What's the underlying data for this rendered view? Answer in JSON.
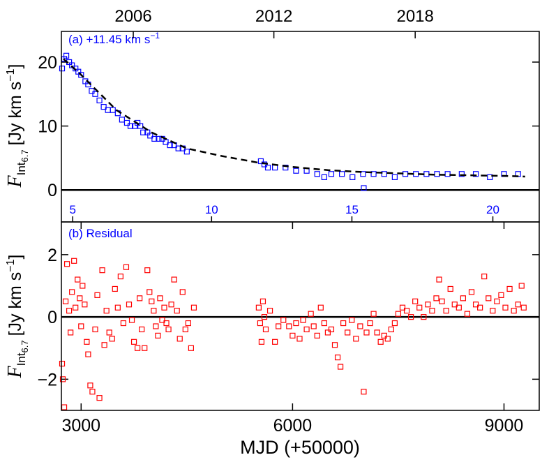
{
  "chart_data": [
    {
      "type": "scatter",
      "title": {
        "text": "(a) +11.45 km s",
        "sup": "−1"
      },
      "ylabel": {
        "symbol": "F",
        "sub": "Int",
        "subsub": "6.7",
        "unit": "[Jy km s",
        "sup": "−1",
        "end": "]"
      },
      "xlim": [
        2720,
        9500
      ],
      "ylim": [
        -5,
        24.8
      ],
      "yticks": [
        0,
        10,
        20
      ],
      "top_xticks": [
        {
          "value": 3740,
          "label": "2006"
        },
        {
          "value": 5735,
          "label": "2012"
        },
        {
          "value": 7740,
          "label": "2018"
        }
      ],
      "inner_xticks": [
        {
          "value": 2881,
          "label": "5"
        },
        {
          "value": 4851,
          "label": "10"
        },
        {
          "value": 6842,
          "label": "15"
        },
        {
          "value": 8842,
          "label": "20"
        }
      ],
      "color": "#0000ff",
      "reference_line": 0,
      "x": [
        2730,
        2760,
        2790,
        2830,
        2870,
        2920,
        2960,
        3000,
        3060,
        3100,
        3150,
        3200,
        3260,
        3320,
        3380,
        3450,
        3520,
        3580,
        3650,
        3700,
        3760,
        3800,
        3840,
        3880,
        3940,
        3980,
        4040,
        4100,
        4150,
        4200,
        4260,
        4320,
        4380,
        4440,
        4500,
        5550,
        5600,
        5650,
        5750,
        5900,
        6050,
        6200,
        6350,
        6450,
        6550,
        6700,
        6850,
        7000,
        7150,
        7300,
        7450,
        7600,
        7750,
        7900,
        8050,
        8200,
        8400,
        8600,
        8800,
        9000,
        9200,
        7010
      ],
      "values": [
        19,
        20.5,
        21,
        20,
        19.5,
        19,
        18.5,
        18,
        17,
        16.5,
        15.5,
        15,
        14,
        13,
        12.5,
        12.5,
        12,
        11,
        10.5,
        10,
        10,
        10.5,
        10,
        9,
        9,
        8.5,
        8,
        8,
        8,
        7.5,
        7,
        7,
        6.5,
        6.5,
        6,
        4.5,
        4,
        3.5,
        3.5,
        3.5,
        3,
        3,
        2.5,
        2,
        2.5,
        2.5,
        2,
        2.5,
        2.5,
        2.5,
        2,
        2.5,
        2.5,
        2.5,
        2.5,
        2.5,
        2.5,
        2.5,
        2,
        2.5,
        2.5,
        0.3
      ],
      "fit": {
        "color": "#000000",
        "style": "dashed",
        "x": [
          2750,
          3000,
          3500,
          4000,
          4500,
          5000,
          5500,
          6000,
          6500,
          7000,
          7500,
          8000,
          8500,
          9000,
          9300
        ],
        "values": [
          20.5,
          18,
          12.5,
          9,
          6.5,
          5.3,
          4.3,
          3.6,
          3.1,
          2.8,
          2.6,
          2.4,
          2.3,
          2.2,
          2.1
        ]
      }
    },
    {
      "type": "scatter",
      "title": {
        "text": "(b) Residual"
      },
      "ylabel": {
        "symbol": "F",
        "sub": "Int",
        "subsub": "6.7",
        "unit": "[Jy km s",
        "sup": "−1",
        "end": "]"
      },
      "xlabel": "MJD (+50000)",
      "xlim": [
        2720,
        9500
      ],
      "ylim": [
        -3,
        3.05
      ],
      "yticks": [
        {
          "value": -2,
          "label": "−2"
        },
        0,
        2
      ],
      "xticks": [
        3000,
        6000,
        9000
      ],
      "color": "#ff0000",
      "reference_line": 0,
      "x": [
        2730,
        2740,
        2760,
        2780,
        2800,
        2830,
        2850,
        2870,
        2900,
        2920,
        2950,
        2980,
        3000,
        3020,
        3050,
        3080,
        3100,
        3130,
        3160,
        3200,
        3230,
        3260,
        3300,
        3330,
        3360,
        3400,
        3440,
        3480,
        3520,
        3560,
        3600,
        3640,
        3680,
        3720,
        3750,
        3800,
        3830,
        3860,
        3900,
        3940,
        3970,
        4000,
        4030,
        4060,
        4090,
        4120,
        4150,
        4180,
        4210,
        4240,
        4280,
        4320,
        4360,
        4400,
        4440,
        4480,
        4520,
        4560,
        4600,
        5520,
        5540,
        5560,
        5580,
        5600,
        5620,
        5680,
        5750,
        5800,
        5870,
        5950,
        6000,
        6050,
        6100,
        6150,
        6200,
        6260,
        6300,
        6350,
        6400,
        6450,
        6500,
        6550,
        6600,
        6640,
        6680,
        6720,
        6780,
        6840,
        6900,
        6960,
        7010,
        7050,
        7100,
        7150,
        7200,
        7250,
        7300,
        7350,
        7400,
        7450,
        7500,
        7560,
        7620,
        7680,
        7740,
        7800,
        7860,
        7920,
        7980,
        8040,
        8080,
        8120,
        8180,
        8240,
        8300,
        8360,
        8420,
        8480,
        8540,
        8600,
        8660,
        8720,
        8780,
        8840,
        8900,
        8960,
        9020,
        9080,
        9140,
        9200,
        9250,
        9280
      ],
      "values": [
        -1.5,
        -2.0,
        -2.9,
        0.5,
        1.7,
        0.2,
        -0.5,
        0.8,
        1.8,
        0.3,
        1.2,
        0.6,
        -0.3,
        1.0,
        0.4,
        -0.8,
        -1.2,
        -2.2,
        -2.4,
        -0.4,
        0.7,
        -2.6,
        1.5,
        -0.9,
        0.2,
        -0.5,
        -0.7,
        0.9,
        0.3,
        1.3,
        -0.2,
        1.6,
        0.4,
        -0.1,
        -0.8,
        -1.0,
        0.6,
        -0.4,
        -1.0,
        1.5,
        0.8,
        0.5,
        0.2,
        -0.3,
        -0.6,
        0.6,
        -0.1,
        0.3,
        -0.2,
        -0.4,
        0.4,
        1.2,
        0.2,
        -0.7,
        0.8,
        -0.4,
        -0.2,
        -1.0,
        0.3,
        0.3,
        -0.2,
        -0.8,
        0.5,
        0.0,
        -0.4,
        0.2,
        -0.8,
        -0.3,
        -0.1,
        -0.3,
        -0.6,
        -0.2,
        -0.7,
        -0.1,
        -0.4,
        0.1,
        -0.3,
        -0.6,
        0.3,
        -0.2,
        -0.5,
        -0.4,
        -0.9,
        -1.3,
        -1.6,
        -0.2,
        -0.5,
        -0.1,
        -0.7,
        -0.3,
        -2.4,
        -0.5,
        -0.2,
        0.1,
        -0.5,
        -0.8,
        -0.6,
        -0.7,
        -0.4,
        -0.2,
        0.1,
        0.3,
        0.2,
        0.0,
        0.5,
        0.3,
        0.0,
        0.4,
        0.2,
        0.6,
        1.2,
        0.5,
        0.2,
        0.9,
        0.4,
        0.3,
        0.6,
        0.1,
        0.8,
        0.4,
        0.3,
        1.3,
        0.6,
        0.2,
        0.5,
        0.7,
        0.3,
        0.9,
        0.2,
        0.4,
        1.0,
        0.3
      ]
    }
  ]
}
